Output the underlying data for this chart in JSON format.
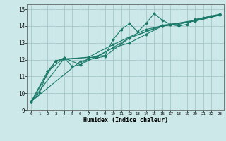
{
  "title": "",
  "xlabel": "Humidex (Indice chaleur)",
  "ylabel": "",
  "bg_color": "#cce8e8",
  "grid_color": "#aacccc",
  "line_color": "#1a7a6a",
  "xlim": [
    -0.5,
    23.5
  ],
  "ylim": [
    9,
    15.3
  ],
  "yticks": [
    9,
    10,
    11,
    12,
    13,
    14,
    15
  ],
  "xticks": [
    0,
    1,
    2,
    3,
    4,
    5,
    6,
    7,
    8,
    9,
    10,
    11,
    12,
    13,
    14,
    15,
    16,
    17,
    18,
    19,
    20,
    21,
    22,
    23
  ],
  "lines": [
    {
      "x": [
        0,
        1,
        2,
        3,
        4,
        5,
        6,
        7,
        8,
        9,
        10,
        11,
        12,
        13,
        14,
        15,
        16,
        17,
        18,
        19,
        20,
        21,
        22,
        23
      ],
      "y": [
        9.5,
        10.0,
        11.3,
        11.9,
        12.1,
        11.6,
        11.7,
        12.1,
        12.2,
        12.25,
        13.2,
        13.8,
        14.15,
        13.65,
        14.15,
        14.75,
        14.35,
        14.1,
        14.0,
        14.1,
        14.4,
        14.5,
        14.6,
        14.7
      ]
    },
    {
      "x": [
        0,
        2,
        4,
        6,
        8,
        10,
        12,
        14,
        16,
        18,
        20,
        22,
        23
      ],
      "y": [
        9.5,
        11.3,
        12.1,
        11.7,
        12.2,
        12.7,
        13.0,
        13.5,
        14.0,
        14.1,
        14.35,
        14.6,
        14.7
      ]
    },
    {
      "x": [
        0,
        4,
        8,
        12,
        16,
        20,
        23
      ],
      "y": [
        9.5,
        12.05,
        12.15,
        13.3,
        14.0,
        14.3,
        14.65
      ]
    },
    {
      "x": [
        0,
        6,
        9,
        12,
        16,
        20,
        23
      ],
      "y": [
        9.5,
        11.9,
        12.2,
        13.3,
        14.05,
        14.3,
        14.65
      ]
    },
    {
      "x": [
        0,
        3,
        7,
        10,
        14,
        17,
        20,
        23
      ],
      "y": [
        9.5,
        11.95,
        12.15,
        12.9,
        13.8,
        14.1,
        14.35,
        14.68
      ]
    }
  ]
}
